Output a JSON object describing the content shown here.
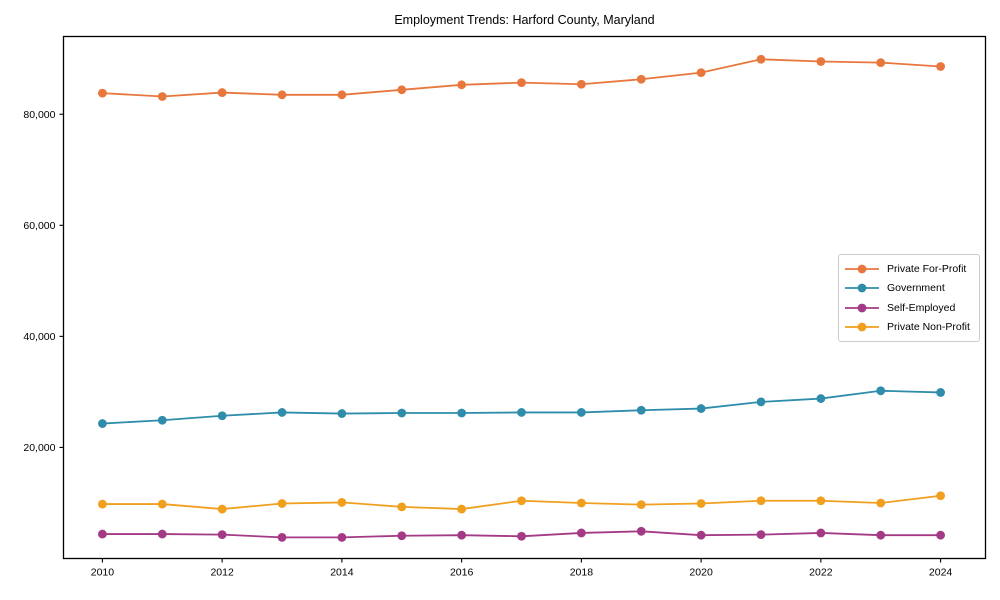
{
  "chart_data": {
    "type": "line",
    "title": "Employment Trends: Harford County, Maryland",
    "xlabel": "",
    "ylabel": "",
    "grid": false,
    "legend_position": "center right",
    "x": [
      2010,
      2011,
      2012,
      2013,
      2014,
      2015,
      2016,
      2017,
      2018,
      2019,
      2020,
      2021,
      2022,
      2023,
      2024
    ],
    "xlim": [
      2009.35,
      2024.75
    ],
    "ylim": [
      0,
      94000
    ],
    "xticks": [
      {
        "v": 2010,
        "label": "2010"
      },
      {
        "v": 2012,
        "label": "2012"
      },
      {
        "v": 2014,
        "label": "2014"
      },
      {
        "v": 2016,
        "label": "2016"
      },
      {
        "v": 2018,
        "label": "2018"
      },
      {
        "v": 2020,
        "label": "2020"
      },
      {
        "v": 2022,
        "label": "2022"
      },
      {
        "v": 2024,
        "label": "2024"
      }
    ],
    "yticks": [
      {
        "v": 20000,
        "label": "20,000"
      },
      {
        "v": 40000,
        "label": "40,000"
      },
      {
        "v": 60000,
        "label": "60,000"
      },
      {
        "v": 80000,
        "label": "80,000"
      }
    ],
    "series": [
      {
        "name": "Private For-Profit",
        "color": "#e8773e",
        "values": [
          83800,
          83200,
          83900,
          83500,
          83500,
          84400,
          85300,
          85700,
          85400,
          86300,
          87500,
          89900,
          89500,
          89300,
          88600
        ]
      },
      {
        "name": "Government",
        "color": "#2f8dab",
        "values": [
          24300,
          24900,
          25700,
          26300,
          26100,
          26200,
          26200,
          26300,
          26300,
          26700,
          27000,
          28200,
          28800,
          30200,
          29900
        ]
      },
      {
        "name": "Self-Employed",
        "color": "#a43a85",
        "values": [
          4400,
          4400,
          4300,
          3800,
          3800,
          4100,
          4200,
          4000,
          4600,
          4900,
          4200,
          4300,
          4600,
          4200,
          4200
        ]
      },
      {
        "name": "Private Non-Profit",
        "color": "#f09f1f",
        "values": [
          9800,
          9800,
          8900,
          9900,
          10100,
          9300,
          8900,
          10400,
          10000,
          9700,
          9900,
          10400,
          10400,
          10000,
          11300
        ]
      }
    ]
  }
}
